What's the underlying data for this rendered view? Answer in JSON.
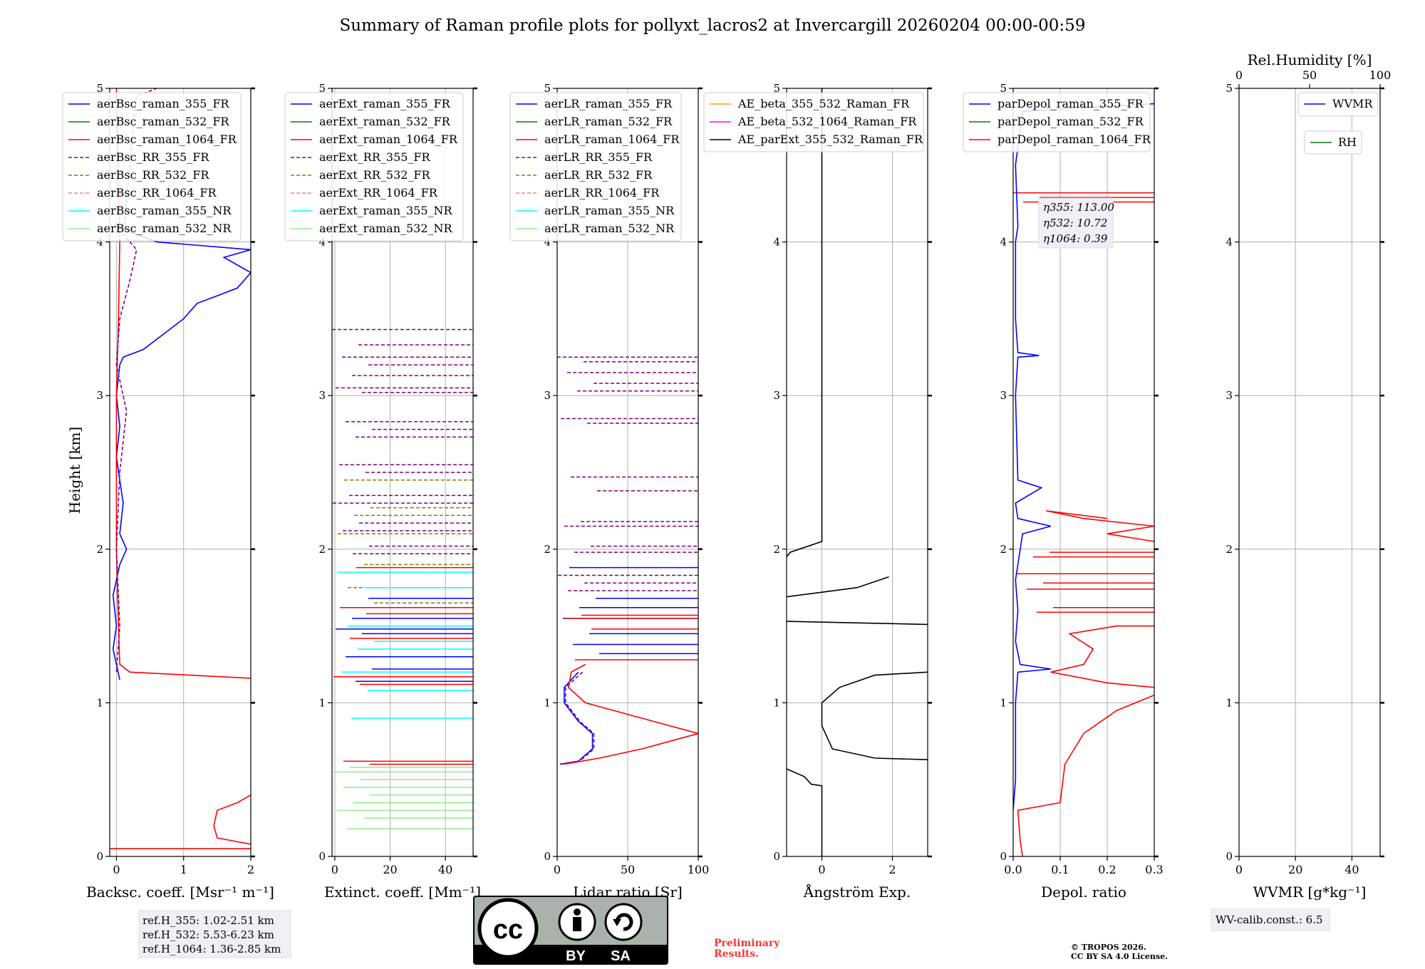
{
  "title": "Summary of Raman profile plots for pollyxt_lacros2 at Invercargill 20260204 00:00-00:59",
  "y_label": "Height [km]",
  "y_ticks": [
    "0",
    "1",
    "2",
    "3",
    "4",
    "5"
  ],
  "colors": {
    "blue": "#0000ff",
    "green": "#008000",
    "red": "#ff0000",
    "purple": "#800080",
    "olive": "#808000",
    "salmon": "#fa8072",
    "cyan": "#00ffff",
    "lightgreen": "#90ee90",
    "orange": "#ffa500",
    "magenta": "#ff00ff",
    "black": "#000000",
    "grid": "#b0b0b0"
  },
  "chart_data": [
    {
      "type": "line",
      "id": "bsc",
      "title": "",
      "xlabel": "Backsc. coeff. [Msr⁻¹ m⁻¹]",
      "xlim": [
        -0.1,
        2.0
      ],
      "ylim": [
        0,
        5
      ],
      "xticks": [
        "0",
        "1",
        "2"
      ],
      "legend": [
        "aerBsc_raman_355_FR",
        "aerBsc_raman_532_FR",
        "aerBsc_raman_1064_FR",
        "aerBsc_RR_355_FR",
        "aerBsc_RR_532_FR",
        "aerBsc_RR_1064_FR",
        "aerBsc_raman_355_NR",
        "aerBsc_raman_532_NR"
      ],
      "series": [
        {
          "name": "aerBsc_raman_355_FR",
          "color": "blue",
          "dash": false,
          "points": [
            [
              0.05,
              1.15
            ],
            [
              0.0,
              1.25
            ],
            [
              -0.05,
              1.35
            ],
            [
              0.0,
              1.5
            ],
            [
              -0.05,
              1.7
            ],
            [
              0.05,
              1.9
            ],
            [
              0.15,
              2.0
            ],
            [
              0.05,
              2.1
            ],
            [
              0.1,
              2.3
            ],
            [
              0.05,
              2.45
            ],
            [
              0.0,
              2.6
            ],
            [
              0.05,
              2.8
            ],
            [
              0.0,
              3.0
            ],
            [
              0.05,
              3.2
            ],
            [
              0.1,
              3.25
            ],
            [
              0.4,
              3.3
            ],
            [
              0.7,
              3.4
            ],
            [
              1.0,
              3.5
            ],
            [
              1.2,
              3.6
            ],
            [
              1.5,
              3.65
            ],
            [
              1.8,
              3.7
            ],
            [
              2.0,
              3.8
            ],
            [
              1.6,
              3.9
            ],
            [
              2.0,
              3.95
            ],
            [
              0.6,
              4.0
            ],
            [
              0.3,
              4.05
            ],
            [
              0.0,
              4.1
            ]
          ]
        },
        {
          "name": "aerBsc_raman_1064_FR",
          "color": "red",
          "dash": false,
          "points": [
            [
              2.0,
              1.16
            ],
            [
              0.2,
              1.2
            ],
            [
              0.05,
              1.25
            ],
            [
              0.03,
              1.5
            ],
            [
              0.0,
              2.0
            ],
            [
              0.0,
              3.0
            ],
            [
              0.03,
              3.5
            ],
            [
              0.05,
              4.0
            ],
            [
              0.0,
              5.0
            ]
          ]
        },
        {
          "name": "aerBsc_RR_355_FR",
          "color": "purple",
          "dash": true,
          "points": [
            [
              0.0,
              1.2
            ],
            [
              0.05,
              1.5
            ],
            [
              0.0,
              2.0
            ],
            [
              0.05,
              2.5
            ],
            [
              0.15,
              2.9
            ],
            [
              0.0,
              3.2
            ],
            [
              0.05,
              3.5
            ],
            [
              0.2,
              3.75
            ],
            [
              0.3,
              3.95
            ],
            [
              0.1,
              4.05
            ],
            [
              0.3,
              4.95
            ],
            [
              0.6,
              5.0
            ]
          ]
        },
        {
          "name": "aerBsc_raman_1064_FR_low",
          "color": "red",
          "dash": false,
          "points": [
            [
              2.0,
              0.08
            ],
            [
              1.5,
              0.12
            ],
            [
              1.45,
              0.2
            ],
            [
              1.5,
              0.3
            ],
            [
              1.8,
              0.35
            ],
            [
              2.0,
              0.4
            ]
          ]
        },
        {
          "name": "aerBsc_raman_1064_FR_surf",
          "color": "red",
          "dash": false,
          "points": [
            [
              -0.1,
              0.05
            ],
            [
              2.0,
              0.05
            ]
          ]
        }
      ],
      "annotation": [
        "ref.H_355: 1.02-2.51 km",
        "ref.H_532: 5.53-6.23 km",
        "ref.H_1064: 1.36-2.85 km"
      ]
    },
    {
      "type": "line",
      "id": "ext",
      "xlabel": "Extinct. coeff. [Mm⁻¹]",
      "xlim": [
        -1,
        50
      ],
      "ylim": [
        0,
        5
      ],
      "xticks": [
        "0",
        "20",
        "40"
      ],
      "legend": [
        "aerExt_raman_355_FR",
        "aerExt_raman_532_FR",
        "aerExt_raman_1064_FR",
        "aerExt_RR_355_FR",
        "aerExt_RR_532_FR",
        "aerExt_RR_1064_FR",
        "aerExt_raman_355_NR",
        "aerExt_raman_532_NR"
      ],
      "hlines": [
        {
          "color": "purple",
          "dash": true,
          "y": [
            3.43,
            3.33,
            3.25,
            3.2,
            3.13,
            3.05,
            3.02,
            2.83,
            2.78,
            2.73,
            2.55,
            2.5,
            2.35,
            2.3,
            2.17,
            2.12,
            2.02,
            1.97
          ]
        },
        {
          "color": "olive",
          "dash": true,
          "y": [
            2.45,
            2.27,
            2.22,
            2.1,
            1.9,
            1.75,
            1.65
          ]
        },
        {
          "color": "red",
          "dash": false,
          "y": [
            1.88,
            1.62,
            1.58,
            1.42,
            1.17,
            1.12,
            0.62,
            0.6
          ]
        },
        {
          "color": "blue",
          "dash": false,
          "y": [
            1.68,
            1.55,
            1.48,
            1.45,
            1.3,
            1.22,
            1.14
          ]
        },
        {
          "color": "cyan",
          "dash": false,
          "y": [
            1.85,
            1.75,
            1.5,
            1.4,
            1.35,
            1.2,
            1.08,
            0.9
          ]
        },
        {
          "color": "lightgreen",
          "dash": false,
          "y": [
            0.58,
            0.55,
            0.5,
            0.45,
            0.4,
            0.35,
            0.3,
            0.25,
            0.18
          ]
        }
      ]
    },
    {
      "type": "line",
      "id": "lr",
      "xlabel": "Lidar ratio [Sr]",
      "xlim": [
        0,
        100
      ],
      "ylim": [
        0,
        5
      ],
      "xticks": [
        "0",
        "50",
        "100"
      ],
      "legend": [
        "aerLR_raman_355_FR",
        "aerLR_raman_532_FR",
        "aerLR_raman_1064_FR",
        "aerLR_RR_355_FR",
        "aerLR_RR_532_FR",
        "aerLR_RR_1064_FR",
        "aerLR_raman_355_NR",
        "aerLR_raman_532_NR"
      ],
      "hlines": [
        {
          "color": "purple",
          "dash": true,
          "y": [
            3.25,
            3.22,
            3.15,
            3.08,
            3.03,
            2.85,
            2.82,
            2.47,
            2.38,
            2.18,
            2.15,
            2.02,
            1.98,
            1.83,
            1.78,
            1.73
          ]
        },
        {
          "color": "blue",
          "dash": false,
          "y": [
            1.88,
            1.68,
            1.62,
            1.55,
            1.45,
            1.38,
            1.32
          ]
        },
        {
          "color": "red",
          "dash": false,
          "y": [
            1.57,
            1.55,
            1.48,
            1.28
          ]
        }
      ],
      "series": [
        {
          "name": "aerLR_raman_355_FR",
          "color": "blue",
          "dash": false,
          "points": [
            [
              15,
              1.2
            ],
            [
              5,
              1.1
            ],
            [
              5,
              1.0
            ],
            [
              15,
              0.88
            ],
            [
              25,
              0.8
            ],
            [
              25,
              0.7
            ],
            [
              15,
              0.62
            ],
            [
              2,
              0.6
            ]
          ]
        },
        {
          "name": "aerLR_RR_355_FR",
          "color": "purple",
          "dash": true,
          "points": [
            [
              18,
              1.2
            ],
            [
              6,
              1.1
            ],
            [
              6,
              1.0
            ],
            [
              16,
              0.88
            ],
            [
              26,
              0.8
            ],
            [
              26,
              0.7
            ],
            [
              16,
              0.62
            ],
            [
              3,
              0.6
            ]
          ]
        },
        {
          "name": "aerLR_raman_1064_FR",
          "color": "red",
          "dash": false,
          "points": [
            [
              20,
              1.25
            ],
            [
              10,
              1.2
            ],
            [
              8,
              1.1
            ],
            [
              20,
              1.0
            ],
            [
              60,
              0.9
            ],
            [
              100,
              0.8
            ],
            [
              80,
              0.75
            ],
            [
              60,
              0.7
            ],
            [
              30,
              0.64
            ],
            [
              5,
              0.6
            ]
          ]
        }
      ]
    },
    {
      "type": "line",
      "id": "ae",
      "xlabel": "Ångström Exp.",
      "xlim": [
        -1,
        3
      ],
      "ylim": [
        0,
        5
      ],
      "xticks": [
        "0",
        "2"
      ],
      "legend": [
        "AE_beta_355_532_Raman_FR",
        "AE_beta_532_1064_Raman_FR",
        "AE_parExt_355_532_Raman_FR"
      ],
      "series": [
        {
          "name": "AE_parExt_355_532_Raman_FR",
          "color": "black",
          "dash": false,
          "points": [
            [
              0,
              5
            ],
            [
              0,
              2.05
            ],
            [
              -0.9,
              1.98
            ],
            [
              -1,
              1.95
            ]
          ]
        },
        {
          "name": "AE_parExt_355_532_Raman_FR_b",
          "color": "black",
          "dash": false,
          "points": [
            [
              -1,
              1.69
            ],
            [
              0,
              1.72
            ],
            [
              1.0,
              1.75
            ],
            [
              1.9,
              1.82
            ]
          ]
        },
        {
          "name": "AE_parExt_355_532_Raman_FR_c",
          "color": "black",
          "dash": false,
          "points": [
            [
              -1,
              1.53
            ],
            [
              3,
              1.51
            ]
          ]
        },
        {
          "name": "AE_parExt_355_532_Raman_FR_d",
          "color": "black",
          "dash": false,
          "points": [
            [
              3,
              1.2
            ],
            [
              1.5,
              1.18
            ],
            [
              0.5,
              1.1
            ],
            [
              0,
              1.0
            ],
            [
              0,
              0.85
            ],
            [
              0.3,
              0.7
            ],
            [
              1.5,
              0.64
            ],
            [
              3,
              0.63
            ]
          ]
        },
        {
          "name": "AE_parExt_355_532_Raman_FR_e",
          "color": "black",
          "dash": false,
          "points": [
            [
              -1,
              0.57
            ],
            [
              -0.5,
              0.52
            ],
            [
              -0.3,
              0.47
            ],
            [
              0,
              0.46
            ],
            [
              0,
              0
            ]
          ]
        }
      ]
    },
    {
      "type": "line",
      "id": "depol",
      "xlabel": "Depol. ratio",
      "xlim": [
        0,
        0.3
      ],
      "ylim": [
        0,
        5
      ],
      "xticks": [
        "0.0",
        "0.1",
        "0.2",
        "0.3"
      ],
      "legend": [
        "parDepol_raman_355_FR",
        "parDepol_raman_532_FR",
        "parDepol_raman_1064_FR"
      ],
      "hlines": [
        {
          "color": "red",
          "dash": false,
          "y": [
            4.32,
            4.29,
            4.26,
            1.98,
            1.95,
            1.84,
            1.78,
            1.74,
            1.62,
            1.59
          ]
        }
      ],
      "series": [
        {
          "name": "parDepol_raman_355_FR",
          "color": "blue",
          "dash": false,
          "points": [
            [
              0.0,
              0.3
            ],
            [
              0.005,
              0.5
            ],
            [
              0.005,
              1.0
            ],
            [
              0.01,
              1.2
            ],
            [
              0.08,
              1.22
            ],
            [
              0.015,
              1.25
            ],
            [
              0.005,
              1.4
            ],
            [
              0.01,
              1.6
            ],
            [
              0.005,
              1.8
            ],
            [
              0.02,
              2.1
            ],
            [
              0.08,
              2.15
            ],
            [
              0.01,
              2.2
            ],
            [
              0.005,
              2.3
            ],
            [
              0.06,
              2.4
            ],
            [
              0.01,
              2.45
            ],
            [
              0.005,
              3.0
            ],
            [
              0.01,
              3.25
            ],
            [
              0.055,
              3.26
            ],
            [
              0.01,
              3.28
            ],
            [
              0.005,
              3.5
            ],
            [
              0.005,
              4.0
            ],
            [
              0.01,
              4.1
            ],
            [
              0.005,
              4.5
            ],
            [
              0.02,
              4.85
            ],
            [
              0.3,
              4.9
            ]
          ]
        },
        {
          "name": "parDepol_raman_1064_FR",
          "color": "red",
          "dash": false,
          "points": [
            [
              0.02,
              0.0
            ],
            [
              0.015,
              0.1
            ],
            [
              0.01,
              0.3
            ],
            [
              0.1,
              0.35
            ],
            [
              0.11,
              0.6
            ],
            [
              0.15,
              0.8
            ],
            [
              0.22,
              0.95
            ],
            [
              0.3,
              1.05
            ]
          ]
        },
        {
          "name": "parDepol_raman_1064_FR_b",
          "color": "red",
          "dash": false,
          "points": [
            [
              0.3,
              1.1
            ],
            [
              0.2,
              1.13
            ],
            [
              0.08,
              1.2
            ],
            [
              0.15,
              1.25
            ],
            [
              0.17,
              1.35
            ],
            [
              0.12,
              1.45
            ],
            [
              0.22,
              1.5
            ],
            [
              0.3,
              1.5
            ]
          ]
        },
        {
          "name": "parDepol_raman_1064_FR_c",
          "color": "red",
          "dash": false,
          "points": [
            [
              0.3,
              2.05
            ],
            [
              0.2,
              2.1
            ],
            [
              0.3,
              2.15
            ],
            [
              0.15,
              2.2
            ],
            [
              0.07,
              2.25
            ],
            [
              0.2,
              2.2
            ]
          ]
        }
      ],
      "annotation": [
        "η355: 113.00",
        "η532: 10.72",
        "η1064: 0.39"
      ]
    },
    {
      "type": "line",
      "id": "wv",
      "xlabel": "WVMR [g*kg⁻¹]",
      "top_xlabel": "Rel.Humidity [%]",
      "xlim": [
        0,
        50
      ],
      "ylim": [
        0,
        5
      ],
      "xticks": [
        "0",
        "20",
        "40"
      ],
      "top_xticks": [
        "0",
        "50",
        "100"
      ],
      "legend": [
        "WVMR"
      ],
      "legend2": [
        "RH"
      ],
      "annotation": [
        "WV-calib.const.: 6.5"
      ]
    }
  ],
  "footer": {
    "license_badge": [
      "BY",
      "SA"
    ],
    "preliminary": [
      "Preliminary",
      "Results."
    ],
    "copyright": [
      "© TROPOS 2026.",
      "CC BY SA 4.0 License."
    ]
  }
}
